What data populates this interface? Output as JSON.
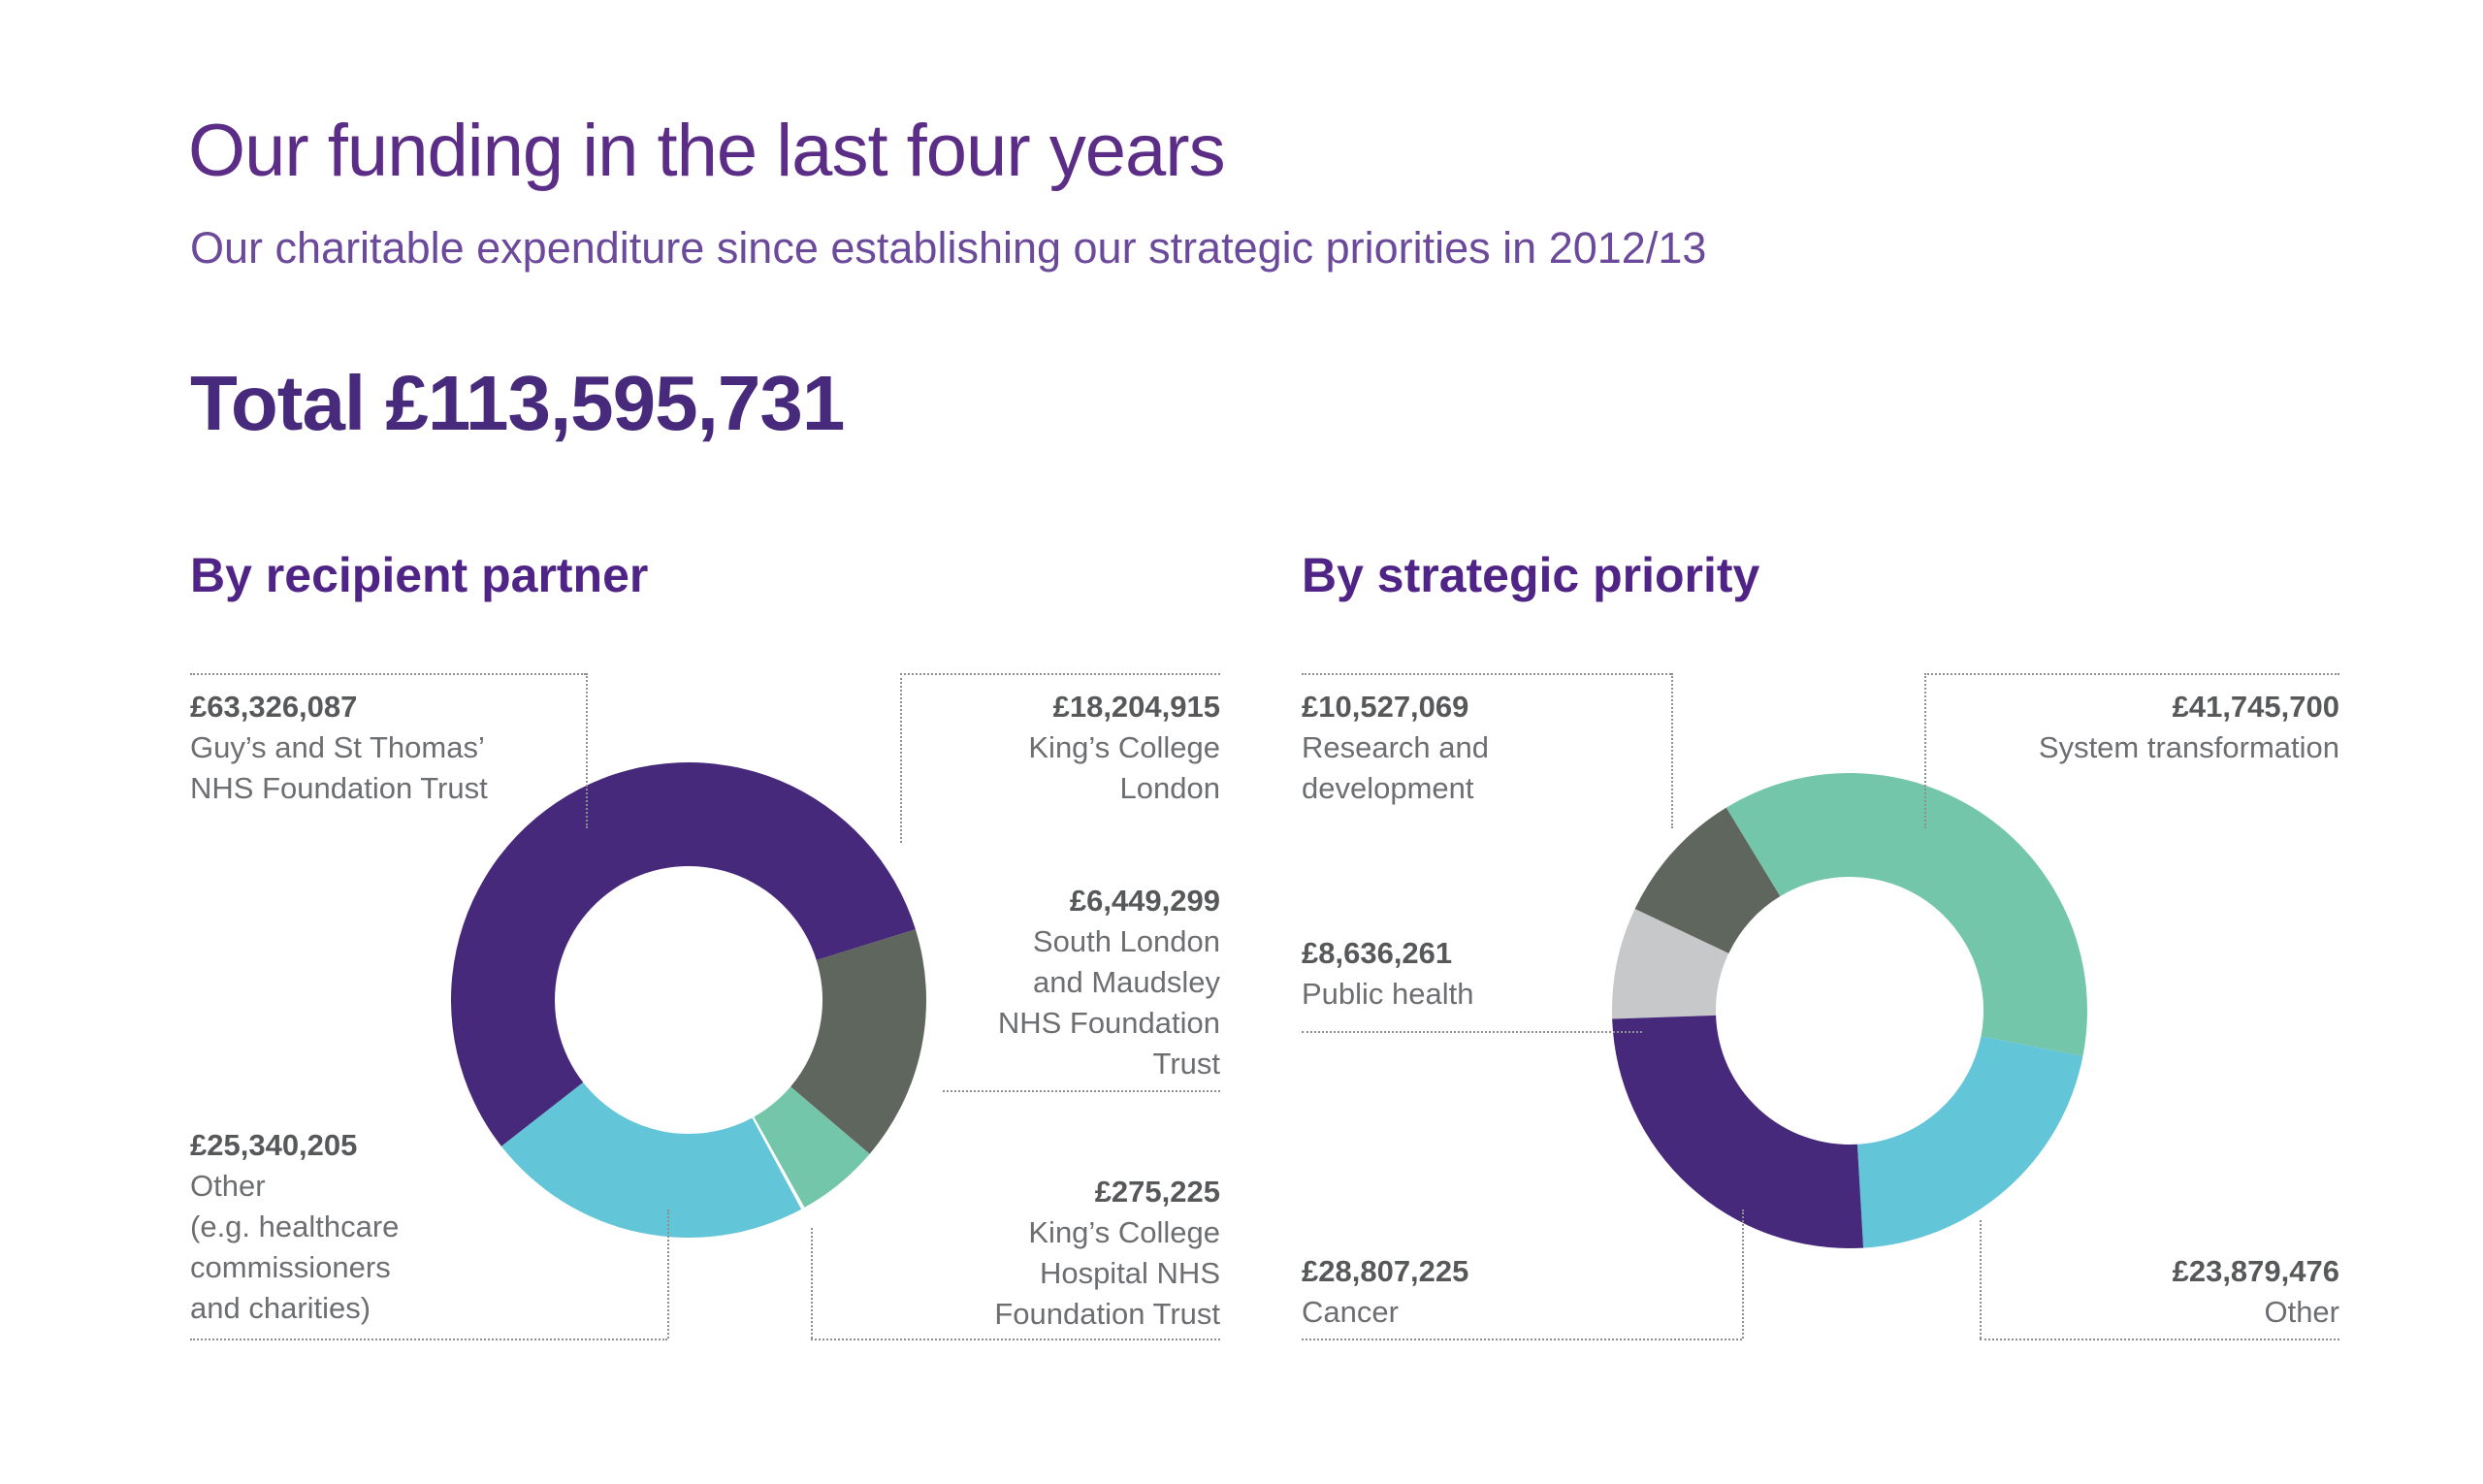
{
  "header": {
    "title": "Our funding in the last four years",
    "subtitle": "Our charitable expenditure since establishing our strategic priorities in 2012/13",
    "total": "Total £113,595,731"
  },
  "chart_data": [
    {
      "type": "pie",
      "variant": "donut",
      "title": "By recipient partner",
      "total_value": 113595731,
      "currency": "GBP",
      "legend_position": "callout-labels",
      "start_angle_deg": 232,
      "segments": [
        {
          "id": "guys-and-st-thomas",
          "display_value": "£63,326,087",
          "value": 63326087,
          "desc": "Guy’s and St Thomas’\nNHS Foundation Trust",
          "color": "#46297b"
        },
        {
          "id": "kings-college-london",
          "display_value": "£18,204,915",
          "value": 18204915,
          "desc": "King’s College\nLondon",
          "color": "#5f665e"
        },
        {
          "id": "south-london-and-maudsley",
          "display_value": "£6,449,299",
          "value": 6449299,
          "desc": "South London\nand Maudsley\nNHS Foundation\nTrust",
          "color": "#74c6ab"
        },
        {
          "id": "kings-college-hospital",
          "display_value": "£275,225",
          "value": 275225,
          "desc": "King’s College\nHospital NHS\nFoundation Trust",
          "color": "#ffffff"
        },
        {
          "id": "other-recipients",
          "display_value": "£25,340,205",
          "value": 25340205,
          "desc": "Other\n(e.g. healthcare\ncommissioners\nand charities)",
          "color": "#63c5d8"
        }
      ]
    },
    {
      "type": "pie",
      "variant": "donut",
      "title": "By strategic priority",
      "total_value": 113595731,
      "currency": "GBP",
      "legend_position": "callout-labels",
      "start_angle_deg": 268,
      "segments": [
        {
          "id": "public-health",
          "display_value": "£8,636,261",
          "value": 8636261,
          "desc": "Public health",
          "color": "#c7c8ca"
        },
        {
          "id": "research-and-development",
          "display_value": "£10,527,069",
          "value": 10527069,
          "desc": "Research and\ndevelopment",
          "color": "#5f665e"
        },
        {
          "id": "system-transformation",
          "display_value": "£41,745,700",
          "value": 41745700,
          "desc": "System transformation",
          "color": "#74c6ab"
        },
        {
          "id": "other-priorities",
          "display_value": "£23,879,476",
          "value": 23879476,
          "desc": "Other",
          "color": "#63c5d8"
        },
        {
          "id": "cancer",
          "display_value": "£28,807,225",
          "value": 28807225,
          "desc": "Cancer",
          "color": "#46297b"
        }
      ]
    }
  ]
}
